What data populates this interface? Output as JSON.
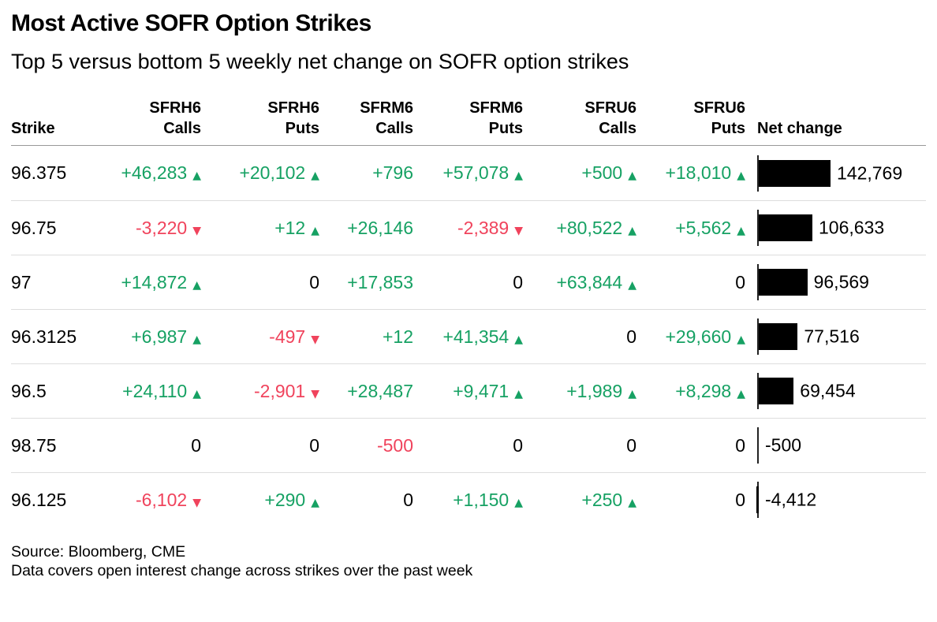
{
  "title": "Most Active SOFR Option Strikes",
  "subtitle": "Top 5 versus bottom 5 weekly net change on SOFR option strikes",
  "footer": {
    "source": "Source: Bloomberg, CME",
    "note": "Data covers open interest change across strikes over the past week"
  },
  "colors": {
    "positive": "#16a163",
    "negative": "#f0435c",
    "neutral": "#000000",
    "bar": "#000000",
    "axis": "#222222"
  },
  "icons": {
    "up": "▲",
    "down": "▼"
  },
  "table": {
    "columns": [
      {
        "id": "strike",
        "line1": "",
        "line2": "Strike",
        "align": "left"
      },
      {
        "id": "sfrh6-calls",
        "line1": "SFRH6",
        "line2": "Calls",
        "align": "right"
      },
      {
        "id": "sfrh6-puts",
        "line1": "SFRH6",
        "line2": "Puts",
        "align": "right"
      },
      {
        "id": "sfrm6-calls",
        "line1": "SFRM6",
        "line2": "Calls",
        "align": "right"
      },
      {
        "id": "sfrm6-puts",
        "line1": "SFRM6",
        "line2": "Puts",
        "align": "right"
      },
      {
        "id": "sfru6-calls",
        "line1": "SFRU6",
        "line2": "Calls",
        "align": "right"
      },
      {
        "id": "sfru6-puts",
        "line1": "SFRU6",
        "line2": "Puts",
        "align": "right"
      },
      {
        "id": "net-change",
        "line1": "",
        "line2": "Net change",
        "align": "left"
      }
    ],
    "rows": [
      {
        "strike": "96.375",
        "cells": [
          {
            "text": "+46,283",
            "dir": "up"
          },
          {
            "text": "+20,102",
            "dir": "up"
          },
          {
            "text": "+796",
            "dir": null
          },
          {
            "text": "+57,078",
            "dir": "up"
          },
          {
            "text": "+500",
            "dir": "up"
          },
          {
            "text": "+18,010",
            "dir": "up"
          }
        ],
        "net": {
          "value": 142769,
          "label": "142,769"
        }
      },
      {
        "strike": "96.75",
        "cells": [
          {
            "text": "-3,220",
            "dir": "down"
          },
          {
            "text": "+12",
            "dir": "up"
          },
          {
            "text": "+26,146",
            "dir": null
          },
          {
            "text": "-2,389",
            "dir": "down"
          },
          {
            "text": "+80,522",
            "dir": "up"
          },
          {
            "text": "+5,562",
            "dir": "up"
          }
        ],
        "net": {
          "value": 106633,
          "label": "106,633"
        }
      },
      {
        "strike": "97",
        "cells": [
          {
            "text": "+14,872",
            "dir": "up"
          },
          {
            "text": "0",
            "dir": null
          },
          {
            "text": "+17,853",
            "dir": null
          },
          {
            "text": "0",
            "dir": null
          },
          {
            "text": "+63,844",
            "dir": "up"
          },
          {
            "text": "0",
            "dir": null
          }
        ],
        "net": {
          "value": 96569,
          "label": "96,569"
        }
      },
      {
        "strike": "96.3125",
        "cells": [
          {
            "text": "+6,987",
            "dir": "up"
          },
          {
            "text": "-497",
            "dir": "down"
          },
          {
            "text": "+12",
            "dir": null
          },
          {
            "text": "+41,354",
            "dir": "up"
          },
          {
            "text": "0",
            "dir": null
          },
          {
            "text": "+29,660",
            "dir": "up"
          }
        ],
        "net": {
          "value": 77516,
          "label": "77,516"
        }
      },
      {
        "strike": "96.5",
        "cells": [
          {
            "text": "+24,110",
            "dir": "up"
          },
          {
            "text": "-2,901",
            "dir": "down"
          },
          {
            "text": "+28,487",
            "dir": null
          },
          {
            "text": "+9,471",
            "dir": "up"
          },
          {
            "text": "+1,989",
            "dir": "up"
          },
          {
            "text": "+8,298",
            "dir": "up"
          }
        ],
        "net": {
          "value": 69454,
          "label": "69,454"
        }
      },
      {
        "strike": "98.75",
        "cells": [
          {
            "text": "0",
            "dir": null
          },
          {
            "text": "0",
            "dir": null
          },
          {
            "text": "-500",
            "dir": null
          },
          {
            "text": "0",
            "dir": null
          },
          {
            "text": "0",
            "dir": null
          },
          {
            "text": "0",
            "dir": null
          }
        ],
        "net": {
          "value": -500,
          "label": "-500"
        }
      },
      {
        "strike": "96.125",
        "cells": [
          {
            "text": "-6,102",
            "dir": "down"
          },
          {
            "text": "+290",
            "dir": "up"
          },
          {
            "text": "0",
            "dir": null
          },
          {
            "text": "+1,150",
            "dir": "up"
          },
          {
            "text": "+250",
            "dir": "up"
          },
          {
            "text": "0",
            "dir": null
          }
        ],
        "net": {
          "value": -4412,
          "label": "-4,412"
        }
      }
    ]
  },
  "chart_data": {
    "type": "table",
    "title": "Most Active SOFR Option Strikes",
    "subtitle": "Top 5 versus bottom 5 weekly net change on SOFR option strikes",
    "columns": [
      "Strike",
      "SFRH6 Calls",
      "SFRH6 Puts",
      "SFRM6 Calls",
      "SFRM6 Puts",
      "SFRU6 Calls",
      "SFRU6 Puts",
      "Net change"
    ],
    "rows": [
      [
        "96.375",
        "+46,283",
        "+20,102",
        "+796",
        "+57,078",
        "+500",
        "+18,010",
        142769
      ],
      [
        "96.75",
        "-3,220",
        "+12",
        "+26,146",
        "-2,389",
        "+80,522",
        "+5,562",
        106633
      ],
      [
        "97",
        "+14,872",
        "0",
        "+17,853",
        "0",
        "+63,844",
        "0",
        96569
      ],
      [
        "96.3125",
        "+6,987",
        "-497",
        "+12",
        "+41,354",
        "0",
        "+29,660",
        77516
      ],
      [
        "96.5",
        "+24,110",
        "-2,901",
        "+28,487",
        "+9,471",
        "+1,989",
        "+8,298",
        69454
      ],
      [
        "98.75",
        "0",
        "0",
        "-500",
        "0",
        "0",
        "0",
        -500
      ],
      [
        "96.125",
        "-6,102",
        "+290",
        "0",
        "+1,150",
        "+250",
        "0",
        -4412
      ]
    ],
    "net_change_bars": {
      "type": "bar",
      "values": [
        142769,
        106633,
        96569,
        77516,
        69454,
        -500,
        -4412
      ],
      "xlim": [
        -5000,
        150000
      ]
    },
    "source": "Source: Bloomberg, CME",
    "note": "Data covers open interest change across strikes over the past week"
  }
}
